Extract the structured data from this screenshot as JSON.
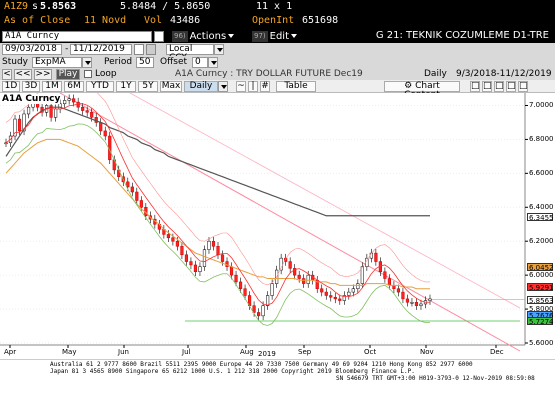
{
  "quote": {
    "ticker": "A1Z9",
    "prefix": "s",
    "last": "5.8563",
    "bid_ask": "5.8484 / 5.8650",
    "size": "11 x 1",
    "as_of": "As of Close",
    "date": "11 Novd",
    "vol_label": "Vol",
    "vol": "43486",
    "oi_label": "OpenInt",
    "oi": "651698"
  },
  "command": {
    "security": "A1A Curncy",
    "actions_num": "96)",
    "actions_label": "Actions",
    "edit_num": "97)",
    "edit_label": "Edit",
    "heading": "G 21: TEKNIK COZUMLEME D1-TRE"
  },
  "dates": {
    "start": "09/03/2018",
    "end": "11/12/2019",
    "currency": "Local CCY"
  },
  "study": {
    "study_label": "Study",
    "study_value": "ExpMA",
    "period_label": "Period",
    "period_value": "50",
    "offset_label": "Offset",
    "offset_value": "0"
  },
  "playbar": {
    "play_label": "Play",
    "loop_label": "Loop",
    "title": "A1A Curncy : TRY DOLLAR FUTURE Dec19",
    "frequency": "Daily",
    "range": "9/3/2018-11/12/2019"
  },
  "periods": [
    "1D",
    "3D",
    "1M",
    "6M",
    "YTD",
    "1Y",
    "5Y",
    "Max"
  ],
  "toolbar": {
    "freq_select": "Daily",
    "table_label": "Table",
    "chart_content_label": "Chart Content"
  },
  "chart_data": {
    "type": "candlestick",
    "title": "A1A Curncy",
    "x_labels": [
      "Apr",
      "May",
      "Jun",
      "Jul",
      "Aug",
      "Sep",
      "Oct",
      "Nov",
      "Dec"
    ],
    "year_label": "2019",
    "ylim": [
      5.6,
      7.05
    ],
    "y_ticks": [
      "7.0000",
      "6.8000",
      "6.6000",
      "6.4000",
      "6.2000",
      "6.0000",
      "5.8000",
      "5.6000"
    ],
    "price_tags": [
      {
        "value": "6.3455",
        "color": "#ffffff"
      },
      {
        "value": "6.0452",
        "color": "#e8a040"
      },
      {
        "value": "5.9291",
        "color": "#ff3030"
      },
      {
        "value": "5.8563",
        "color": "#ffffff"
      },
      {
        "value": "5.7676",
        "color": "#4aa0ff"
      },
      {
        "value": "5.7274",
        "color": "#40c040"
      }
    ],
    "close": [
      6.78,
      6.82,
      6.92,
      6.85,
      6.95,
      6.99,
      7.02,
      6.99,
      6.96,
      7.0,
      6.93,
      6.98,
      7.01,
      7.03,
      7.04,
      7.02,
      6.99,
      6.97,
      6.96,
      6.93,
      6.9,
      6.85,
      6.82,
      6.68,
      6.62,
      6.58,
      6.55,
      6.52,
      6.49,
      6.44,
      6.4,
      6.35,
      6.33,
      6.3,
      6.27,
      6.24,
      6.22,
      6.2,
      6.17,
      6.12,
      6.08,
      6.06,
      6.02,
      6.05,
      6.15,
      6.2,
      6.17,
      6.12,
      6.08,
      6.05,
      6.0,
      5.96,
      5.92,
      5.88,
      5.82,
      5.78,
      5.76,
      5.82,
      5.88,
      5.95,
      6.03,
      6.1,
      6.08,
      6.04,
      6.0,
      5.98,
      5.95,
      6.0,
      5.97,
      5.92,
      5.9,
      5.88,
      5.87,
      5.86,
      5.85,
      5.88,
      5.9,
      5.92,
      5.95,
      6.05,
      6.1,
      6.13,
      6.08,
      6.02,
      5.98,
      5.94,
      5.92,
      5.9,
      5.86,
      5.84,
      5.84,
      5.82,
      5.83,
      5.85,
      5.86
    ],
    "ema50": [
      6.6,
      6.63,
      6.66,
      6.69,
      6.72,
      6.74,
      6.76,
      6.78,
      6.79,
      6.8,
      6.8,
      6.8,
      6.8,
      6.79,
      6.78,
      6.77,
      6.76,
      6.74,
      6.72,
      6.7,
      6.68,
      6.66,
      6.63,
      6.6,
      6.57,
      6.54,
      6.51,
      6.48,
      6.45,
      6.42,
      6.39,
      6.37,
      6.34,
      6.32,
      6.3,
      6.27,
      6.25,
      6.23,
      6.21,
      6.19,
      6.17,
      6.15,
      6.13,
      6.12,
      6.11,
      6.1,
      6.09,
      6.08,
      6.07,
      6.06,
      6.05,
      6.04,
      6.03,
      6.02,
      6.01,
      6.0,
      5.99,
      5.99,
      5.98,
      5.98,
      5.98,
      5.98,
      5.98,
      5.98,
      5.98,
      5.97,
      5.97,
      5.97,
      5.97,
      5.96,
      5.96,
      5.96,
      5.95,
      5.95,
      5.94,
      5.94,
      5.94,
      5.94,
      5.94,
      5.94,
      5.95,
      5.95,
      5.95,
      5.95,
      5.95,
      5.94,
      5.94,
      5.94,
      5.93,
      5.93,
      5.93,
      5.92,
      5.92,
      5.92,
      5.92
    ],
    "sma200": [
      6.7,
      6.74,
      6.78,
      6.82,
      6.86,
      6.9,
      6.93,
      6.95,
      6.97,
      6.98,
      6.99,
      6.99,
      6.99,
      6.98,
      6.97,
      6.96,
      6.95,
      6.94,
      6.93,
      6.92,
      6.91,
      6.9,
      6.89,
      6.87,
      6.86,
      6.85,
      6.84,
      6.82,
      6.81,
      6.8,
      6.78,
      6.77,
      6.76,
      6.74,
      6.73,
      6.72,
      6.7,
      6.69,
      6.68,
      6.67,
      6.66,
      6.65,
      6.64,
      6.63,
      6.62,
      6.61,
      6.6,
      6.59,
      6.58,
      6.57,
      6.56,
      6.55,
      6.54,
      6.53,
      6.52,
      6.51,
      6.5,
      6.49,
      6.48,
      6.47,
      6.46,
      6.45,
      6.44,
      6.43,
      6.42,
      6.41,
      6.4,
      6.39,
      6.38,
      6.37,
      6.36,
      6.35,
      6.35,
      6.35,
      6.35,
      6.35,
      6.35,
      6.35,
      6.35,
      6.35,
      6.35,
      6.35,
      6.35,
      6.35,
      6.35,
      6.35,
      6.35,
      6.35,
      6.35,
      6.35,
      6.35,
      6.35,
      6.35,
      6.35,
      6.35
    ]
  },
  "footer": {
    "line1": "Australia 61 2 9777 8600 Brazil 5511 2395 9000 Europe 44 20 7330 7500 Germany 49 69 9204 1210 Hong Kong 852 2977 6000",
    "line2": "Japan 81 3 4565 8900       Singapore 65 6212 1000       U.S. 1 212 318 2000       Copyright 2019 Bloomberg Finance L.P.",
    "line3": "SN 546679 TRT  GMT+3:00 H019-3793-0 12-Nov-2019 08:59:08"
  }
}
